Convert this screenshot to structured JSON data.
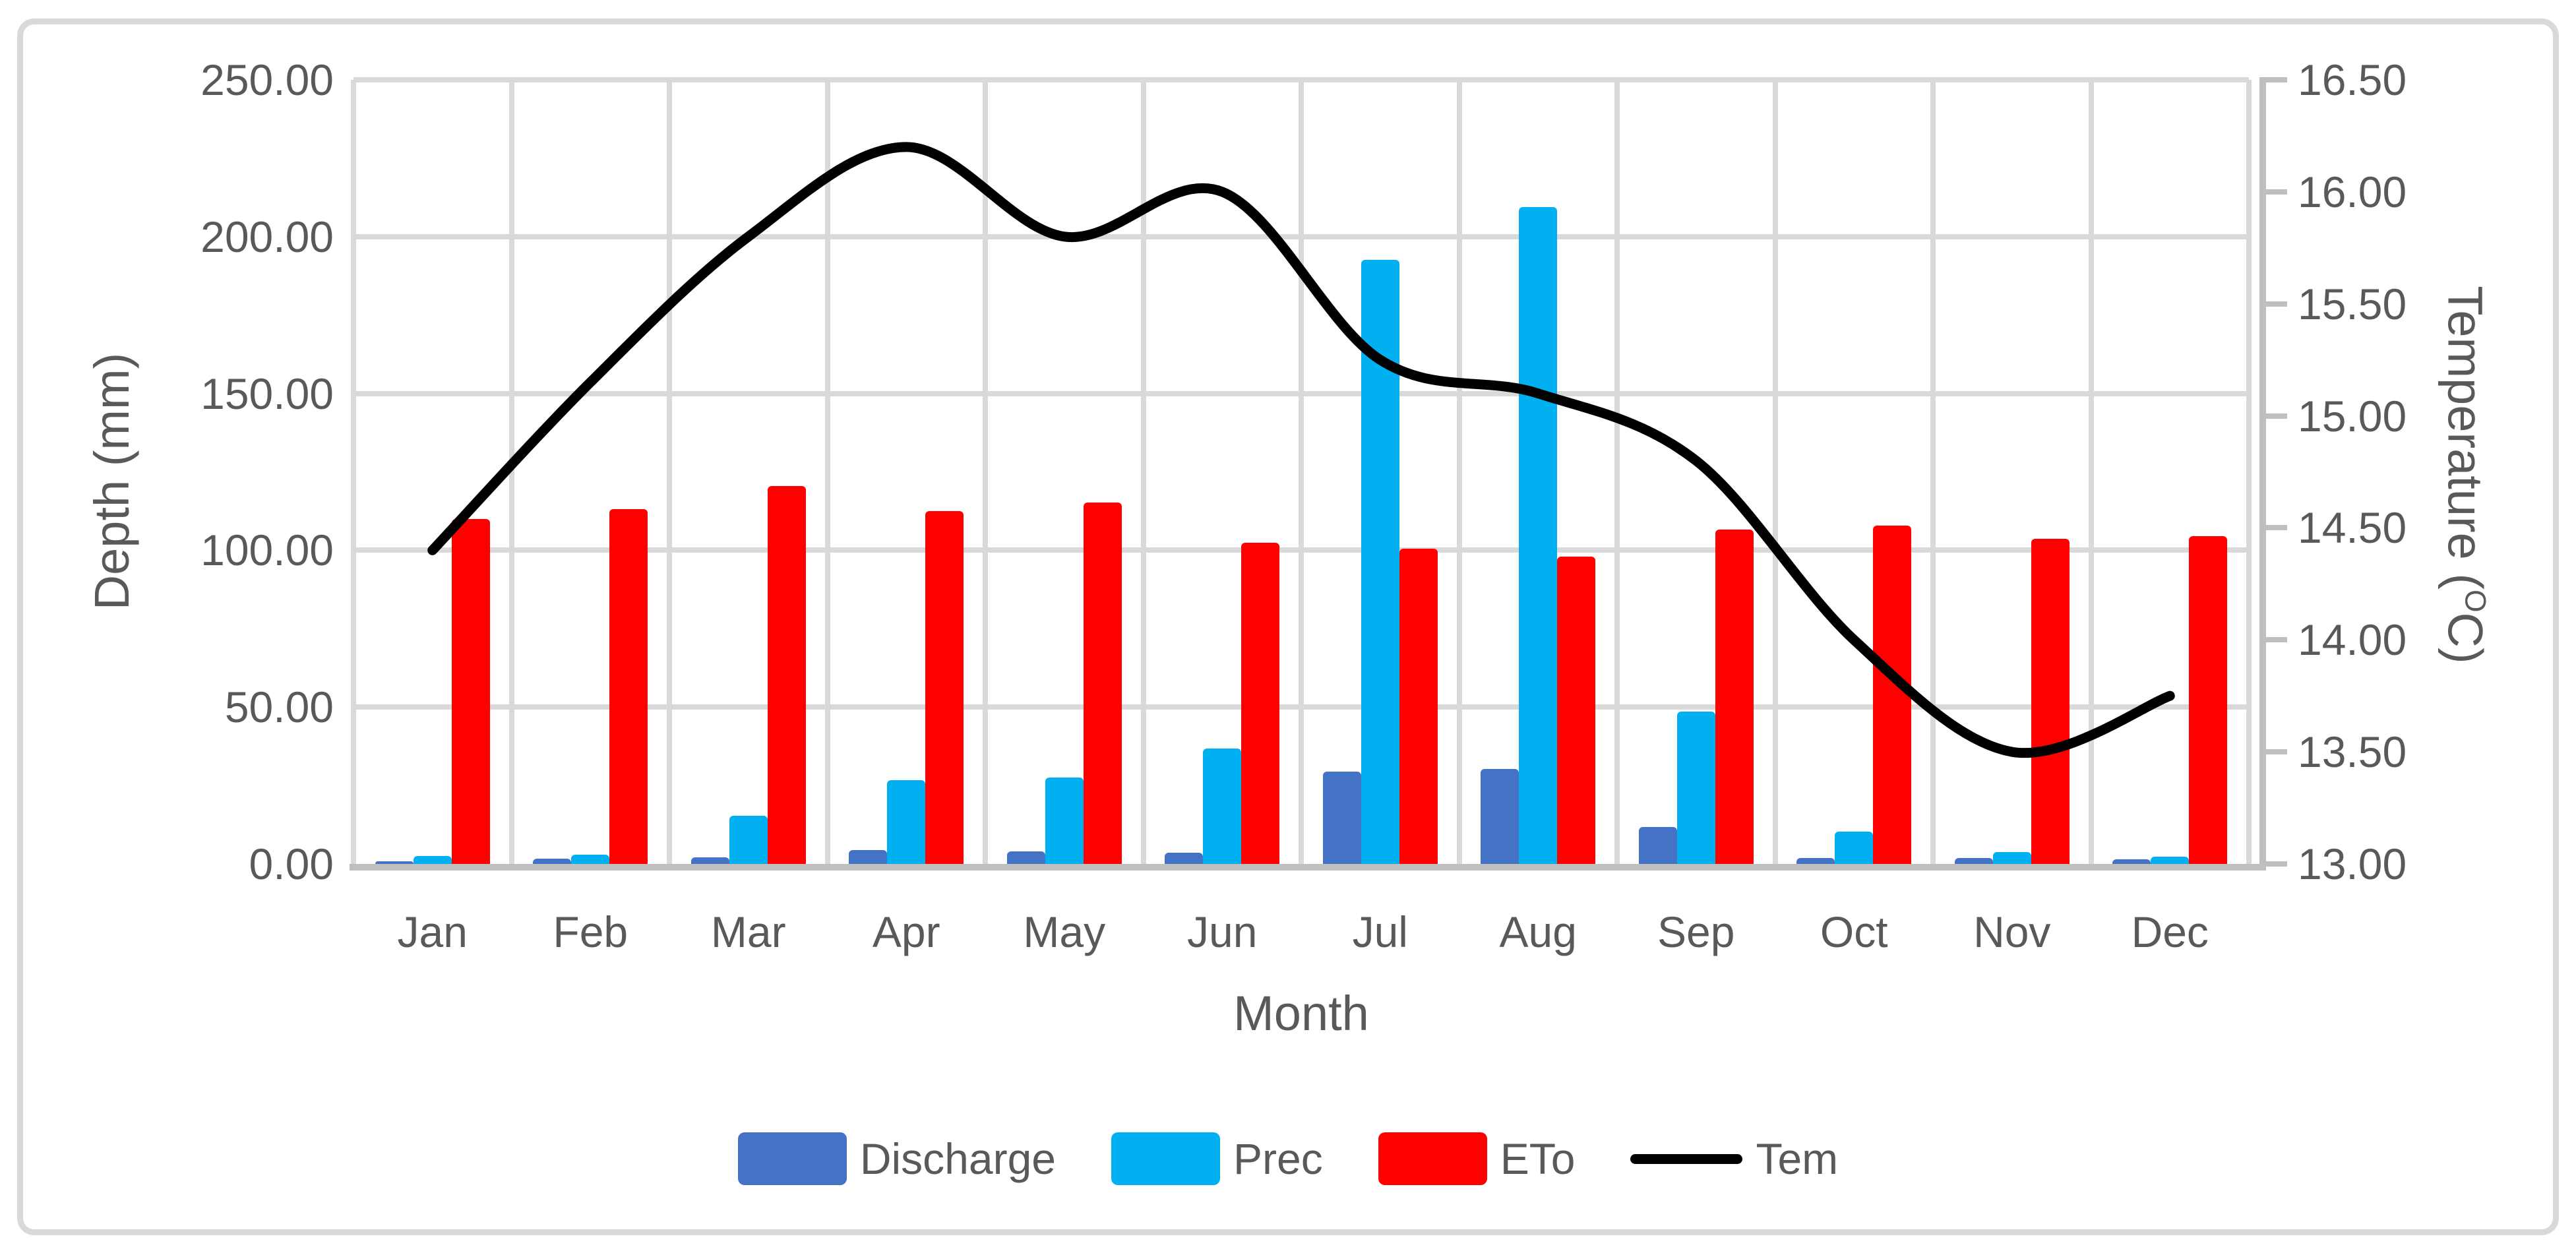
{
  "chart_data": {
    "type": "combo-bar-line",
    "categories": [
      "Jan",
      "Feb",
      "Mar",
      "Apr",
      "May",
      "Jun",
      "Jul",
      "Aug",
      "Sep",
      "Oct",
      "Nov",
      "Dec"
    ],
    "series": [
      {
        "name": "Discharge",
        "type": "bar",
        "axis": "left",
        "color": "#4472C4",
        "values": [
          0.8,
          1.6,
          2.1,
          4.4,
          4.0,
          3.6,
          29.5,
          30.2,
          11.8,
          1.9,
          1.9,
          1.4
        ]
      },
      {
        "name": "Prec",
        "type": "bar",
        "axis": "left",
        "color": "#00B0F0",
        "values": [
          2.5,
          3.0,
          15.3,
          26.7,
          27.5,
          36.8,
          192.5,
          209.5,
          48.5,
          10.3,
          3.8,
          2.3
        ]
      },
      {
        "name": "ETo",
        "type": "bar",
        "axis": "left",
        "color": "#FF0000",
        "values": [
          110.0,
          113.1,
          120.4,
          112.5,
          115.2,
          102.5,
          100.4,
          97.9,
          106.5,
          107.8,
          103.6,
          104.5
        ]
      },
      {
        "name": "Tem",
        "type": "line",
        "axis": "right",
        "color": "#000000",
        "values": [
          14.4,
          15.15,
          15.8,
          16.2,
          15.8,
          16.0,
          15.25,
          15.1,
          14.8,
          14.0,
          13.5,
          13.75
        ]
      }
    ],
    "left_axis": {
      "title": "Depth (mm)",
      "min": 0,
      "max": 250,
      "tick_labels": [
        "0.00",
        "50.00",
        "100.00",
        "150.00",
        "200.00",
        "250.00"
      ]
    },
    "right_axis": {
      "title_pre": "Temperature (",
      "title_sup": "O",
      "title_post": "C)",
      "min": 13,
      "max": 16.5,
      "tick_labels": [
        "13.00",
        "13.50",
        "14.00",
        "14.50",
        "15.00",
        "15.50",
        "16.00",
        "16.50"
      ]
    },
    "x_axis": {
      "title": "Month"
    },
    "grid": true,
    "legend_position": "bottom"
  },
  "colors": {
    "grid": "#D9D9D9",
    "axis": "#BFBFBF",
    "text": "#595959",
    "figure_border": "#D9D9D9",
    "background": "#FFFFFF"
  }
}
